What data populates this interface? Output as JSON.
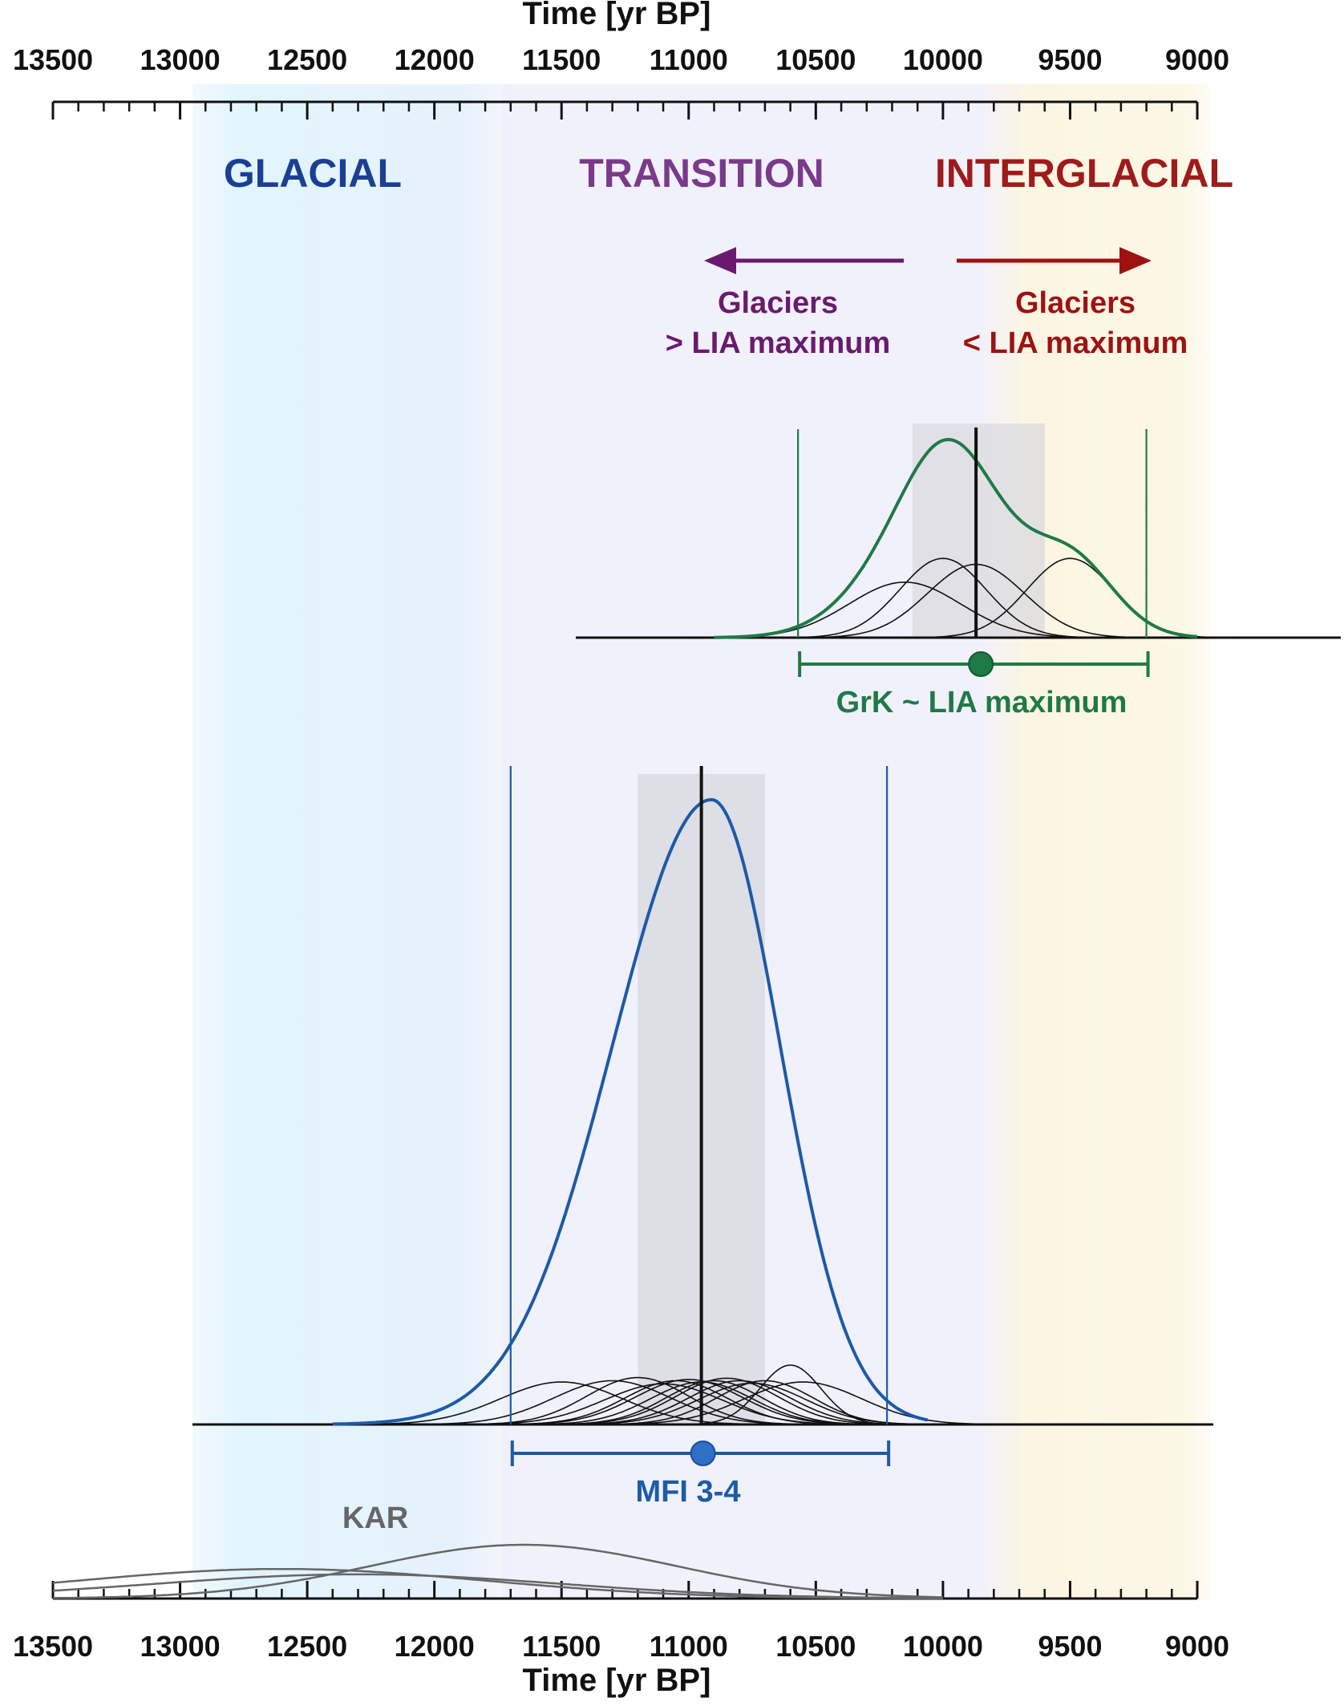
{
  "chart_data": {
    "type": "line",
    "x_axis": {
      "title": "Time [yr BP]",
      "range": [
        13500,
        9000
      ],
      "reversed": true,
      "major_ticks": [
        "13500",
        "13000",
        "12500",
        "12000",
        "11500",
        "11000",
        "10500",
        "10000",
        "9500",
        "9000"
      ],
      "minor_tick_step": 100
    },
    "periods": [
      {
        "label": "GLACIAL",
        "from": 12950,
        "to": 11700,
        "color": "#1a3f94",
        "shade": "#e6f4fb"
      },
      {
        "label": "TRANSITION",
        "from": 11700,
        "to": 9850,
        "color": "#7a3a8c",
        "shade": "#f1f1fc"
      },
      {
        "label": "INTERGLACIAL",
        "from": 9850,
        "to": 9000,
        "color": "#9e1b1b",
        "shade": "#fdf7e6"
      }
    ],
    "notes": [
      {
        "lines": [
          "Glaciers",
          "> LIA maximum"
        ],
        "color": "#6a1a6e",
        "arrow": "left"
      },
      {
        "lines": [
          "Glaciers",
          "< LIA maximum"
        ],
        "color": "#9e1212",
        "arrow": "right"
      }
    ],
    "series": [
      {
        "name": "GrK ~ LIA maximum",
        "color": "#1f7a45",
        "label_color": "#1f7a45",
        "peak_year": 10000,
        "range": [
          10570,
          9200
        ],
        "mean": 9870,
        "mean_band": [
          10120,
          9600
        ],
        "individual": [
          {
            "mean": 10150,
            "sd": 220
          },
          {
            "mean": 10000,
            "sd": 170
          },
          {
            "mean": 9870,
            "sd": 190
          },
          {
            "mean": 9500,
            "sd": 170
          }
        ],
        "sum": {
          "mu": [
            10150,
            10000,
            9870,
            9500
          ],
          "sd": [
            220,
            170,
            190,
            170
          ],
          "w": [
            0.3,
            0.34,
            0.36,
            0.34
          ]
        }
      },
      {
        "name": "MFI 3-4",
        "color": "#1d5aa8",
        "label_color": "#1d5aa8",
        "peak_year": 10910,
        "range": [
          11700,
          10220
        ],
        "mean": 10950,
        "mean_band": [
          11200,
          10700
        ],
        "individual": [
          {
            "mean": 11500,
            "sd": 240
          },
          {
            "mean": 11300,
            "sd": 230
          },
          {
            "mean": 11200,
            "sd": 200
          },
          {
            "mean": 11100,
            "sd": 230
          },
          {
            "mean": 11050,
            "sd": 200
          },
          {
            "mean": 11000,
            "sd": 210
          },
          {
            "mean": 10950,
            "sd": 200
          },
          {
            "mean": 10900,
            "sd": 190
          },
          {
            "mean": 10850,
            "sd": 200
          },
          {
            "mean": 10800,
            "sd": 200
          },
          {
            "mean": 10750,
            "sd": 210
          },
          {
            "mean": 10700,
            "sd": 190
          },
          {
            "mean": 10600,
            "sd": 120
          },
          {
            "mean": 10550,
            "sd": 230
          }
        ]
      },
      {
        "name": "KAR",
        "color": "#666666",
        "label_color": "#666666",
        "individual": [
          {
            "mean": 11650,
            "sd": 600,
            "height": 1.0
          },
          {
            "mean": 12300,
            "sd": 800,
            "height": 0.45
          },
          {
            "mean": 12600,
            "sd": 800,
            "height": 0.55
          }
        ]
      }
    ]
  }
}
